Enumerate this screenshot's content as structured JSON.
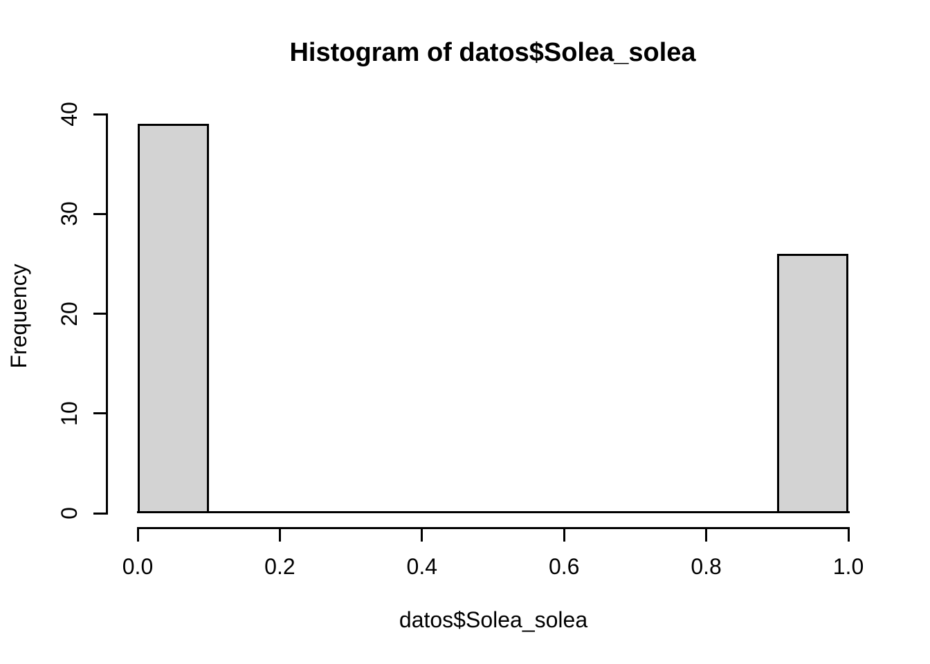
{
  "chart_data": {
    "type": "bar",
    "chart_kind": "histogram",
    "title": "Histogram of datos$Solea_solea",
    "xlabel": "datos$Solea_solea",
    "ylabel": "Frequency",
    "xlim": [
      0.0,
      1.0
    ],
    "ylim": [
      0,
      40
    ],
    "x_tick_values": [
      0.0,
      0.2,
      0.4,
      0.6,
      0.8,
      1.0
    ],
    "x_tick_labels": [
      "0.0",
      "0.2",
      "0.4",
      "0.6",
      "0.8",
      "1.0"
    ],
    "y_tick_values": [
      0,
      10,
      20,
      30,
      40
    ],
    "y_tick_labels": [
      "0",
      "10",
      "20",
      "30",
      "40"
    ],
    "bin_width": 0.1,
    "bins": [
      {
        "start": 0.0,
        "end": 0.1,
        "count": 39
      },
      {
        "start": 0.1,
        "end": 0.2,
        "count": 0
      },
      {
        "start": 0.2,
        "end": 0.3,
        "count": 0
      },
      {
        "start": 0.3,
        "end": 0.4,
        "count": 0
      },
      {
        "start": 0.4,
        "end": 0.5,
        "count": 0
      },
      {
        "start": 0.5,
        "end": 0.6,
        "count": 0
      },
      {
        "start": 0.6,
        "end": 0.7,
        "count": 0
      },
      {
        "start": 0.7,
        "end": 0.8,
        "count": 0
      },
      {
        "start": 0.8,
        "end": 0.9,
        "count": 0
      },
      {
        "start": 0.9,
        "end": 1.0,
        "count": 26
      }
    ],
    "colors": {
      "bar_fill": "#d3d3d3",
      "bar_border": "#000000",
      "axis": "#000000",
      "text": "#000000",
      "background": "#ffffff"
    },
    "grid": false,
    "legend": false
  }
}
